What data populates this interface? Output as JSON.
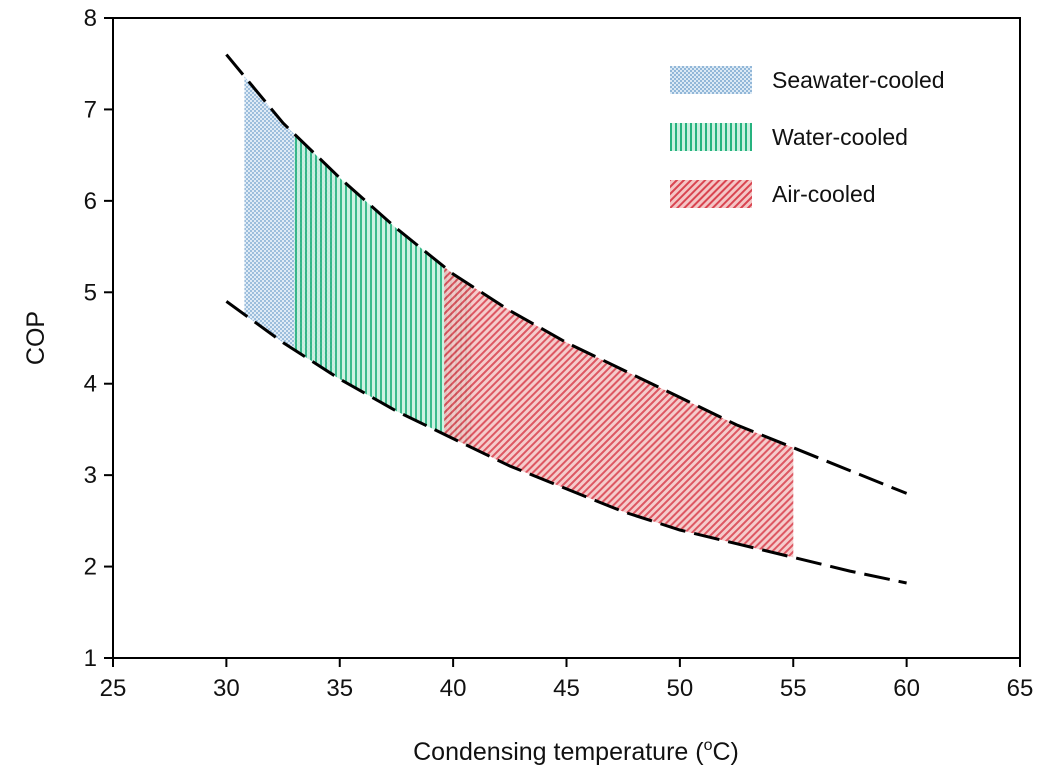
{
  "chart_data": {
    "type": "area",
    "xlabel": "Condensing temperature (°C)",
    "xlabel_main": "Condensing temperature (",
    "xlabel_unit": "°C",
    "xlabel_deg": "o",
    "xlabel_c": "C)",
    "ylabel": "COP",
    "xlim": [
      25,
      65
    ],
    "ylim": [
      1,
      8
    ],
    "xticks": [
      25,
      30,
      35,
      40,
      45,
      50,
      55,
      60,
      65
    ],
    "yticks": [
      1,
      2,
      3,
      4,
      5,
      6,
      7,
      8
    ],
    "grid": false,
    "legend_position": "top-right",
    "boundary_curves": [
      {
        "role": "upper",
        "style": "dashed",
        "x": [
          30,
          32.5,
          35,
          37.5,
          40,
          42.5,
          45,
          47.5,
          50,
          52.5,
          55,
          57.5,
          60
        ],
        "y": [
          7.6,
          6.85,
          6.25,
          5.7,
          5.2,
          4.8,
          4.45,
          4.15,
          3.85,
          3.55,
          3.3,
          3.05,
          2.8
        ]
      },
      {
        "role": "lower",
        "style": "dashed",
        "x": [
          30,
          32.5,
          35,
          37.5,
          40,
          42.5,
          45,
          47.5,
          50,
          52.5,
          55,
          57.5,
          60
        ],
        "y": [
          4.9,
          4.45,
          4.05,
          3.7,
          3.4,
          3.1,
          2.85,
          2.6,
          2.4,
          2.25,
          2.1,
          1.95,
          1.82
        ]
      }
    ],
    "series": [
      {
        "name": "Seawater-cooled",
        "x_range": [
          30.8,
          34.8
        ],
        "color": "#6fa8d6",
        "pattern": "dots"
      },
      {
        "name": "Water-cooled",
        "x_range": [
          33.0,
          40.8
        ],
        "color": "#2fbf8f",
        "pattern": "vertical-lines"
      },
      {
        "name": "Air-cooled",
        "x_range": [
          39.6,
          55.0
        ],
        "color": "#e0505a",
        "pattern": "diagonal-hatch"
      }
    ]
  }
}
